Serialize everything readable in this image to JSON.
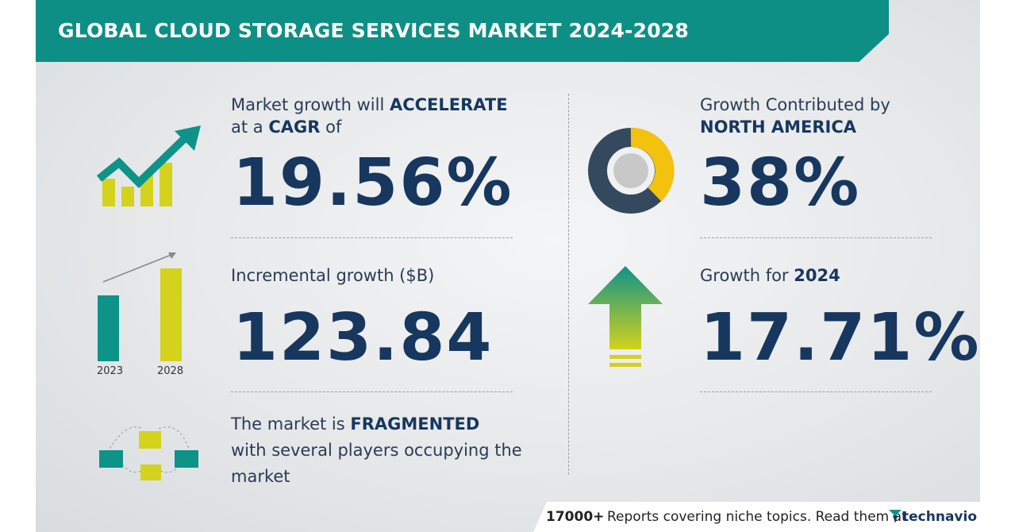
{
  "header": {
    "title": "GLOBAL CLOUD STORAGE SERVICES MARKET 2024-2028"
  },
  "cagr": {
    "lead": "Market growth will",
    "emph": "ACCELERATE",
    "line2": "at a",
    "emph2": "CAGR",
    "tail": "of",
    "value": "19.56%"
  },
  "incremental": {
    "label": "Incremental growth ($B)",
    "value": "123.84",
    "years": [
      "2023",
      "2028"
    ]
  },
  "fragmented": {
    "lead": "The market is",
    "emph": "FRAGMENTED",
    "rest": "with several players occupying the market"
  },
  "region": {
    "label": "Growth Contributed by",
    "name": "NORTH AMERICA",
    "value": "38%"
  },
  "yoy": {
    "label": "Growth for",
    "year": "2024",
    "value": "17.71%"
  },
  "footer": {
    "count": "17000+",
    "text": "Reports covering niche topics. Read them at",
    "brand": "technavio"
  }
}
